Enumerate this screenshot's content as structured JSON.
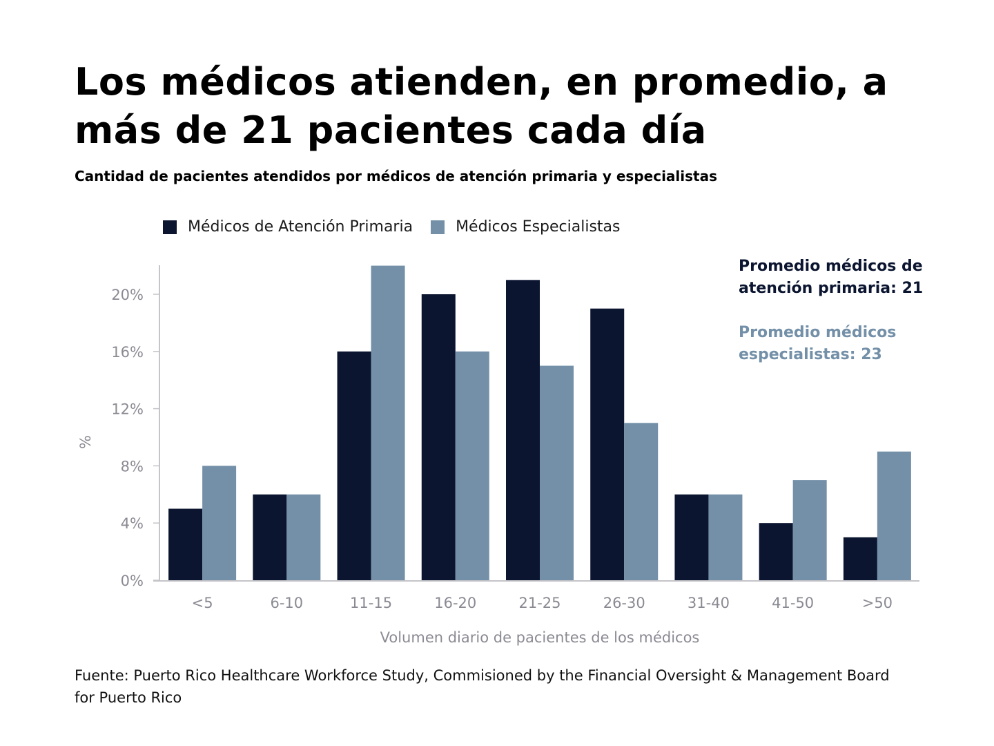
{
  "title": "Los médicos atienden, en promedio, a más de 21 pacientes cada día",
  "subtitle": "Cantidad de pacientes atendidos por médicos de atención primaria y especialistas",
  "annotations": {
    "primary": "Promedio médicos de atención primaria: 21",
    "specialists": "Promedio médicos especialistas: 23"
  },
  "source": "Fuente: Puerto Rico Healthcare Workforce Study, Commisioned by the Financial Oversight & Management Board for Puerto Rico",
  "chart_data": {
    "type": "bar",
    "title": "Los médicos atienden, en promedio, a más de 21 pacientes cada día",
    "subtitle": "Cantidad de pacientes atendidos por médicos de atención primaria y especialistas",
    "xlabel": "Volumen diario de pacientes de los médicos",
    "ylabel": "%",
    "categories": [
      "<5",
      "6-10",
      "11-15",
      "16-20",
      "21-25",
      "26-30",
      "31-40",
      "41-50",
      ">50"
    ],
    "series": [
      {
        "name": "Médicos de Atención Primaria",
        "color": "#0b1530",
        "values": [
          5,
          6,
          16,
          20,
          21,
          19,
          6,
          4,
          3
        ]
      },
      {
        "name": "Médicos Especialistas",
        "color": "#7390a8",
        "values": [
          8,
          6,
          22,
          16,
          15,
          11,
          6,
          7,
          9
        ]
      }
    ],
    "yticks": [
      0,
      4,
      8,
      12,
      16,
      20
    ],
    "ytick_labels": [
      "0%",
      "4%",
      "8%",
      "12%",
      "16%",
      "20%"
    ],
    "ylim": [
      0,
      22
    ],
    "grid": false,
    "legend": "top-left"
  }
}
